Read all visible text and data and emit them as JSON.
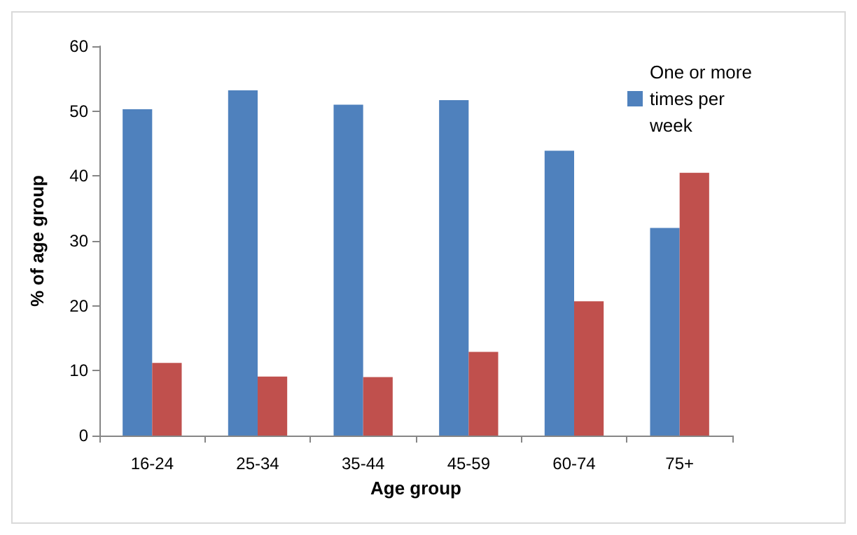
{
  "chart_data": {
    "type": "bar",
    "xlabel": "Age group",
    "ylabel": "% of age group",
    "categories": [
      "16-24",
      "25-34",
      "35-44",
      "45-59",
      "60-74",
      "75+"
    ],
    "series": [
      {
        "name": "One or more times per week",
        "color": "#4f81bd",
        "values": [
          50.3,
          53.2,
          51.0,
          51.7,
          43.9,
          32.0
        ]
      },
      {
        "color": "#c0504d",
        "values": [
          11.2,
          9.1,
          9.0,
          12.9,
          20.7,
          40.5
        ]
      }
    ],
    "ylim": [
      0,
      60
    ],
    "yticks": [
      0,
      10,
      20,
      30,
      40,
      50,
      60
    ],
    "grid": false,
    "legend": "top right"
  }
}
